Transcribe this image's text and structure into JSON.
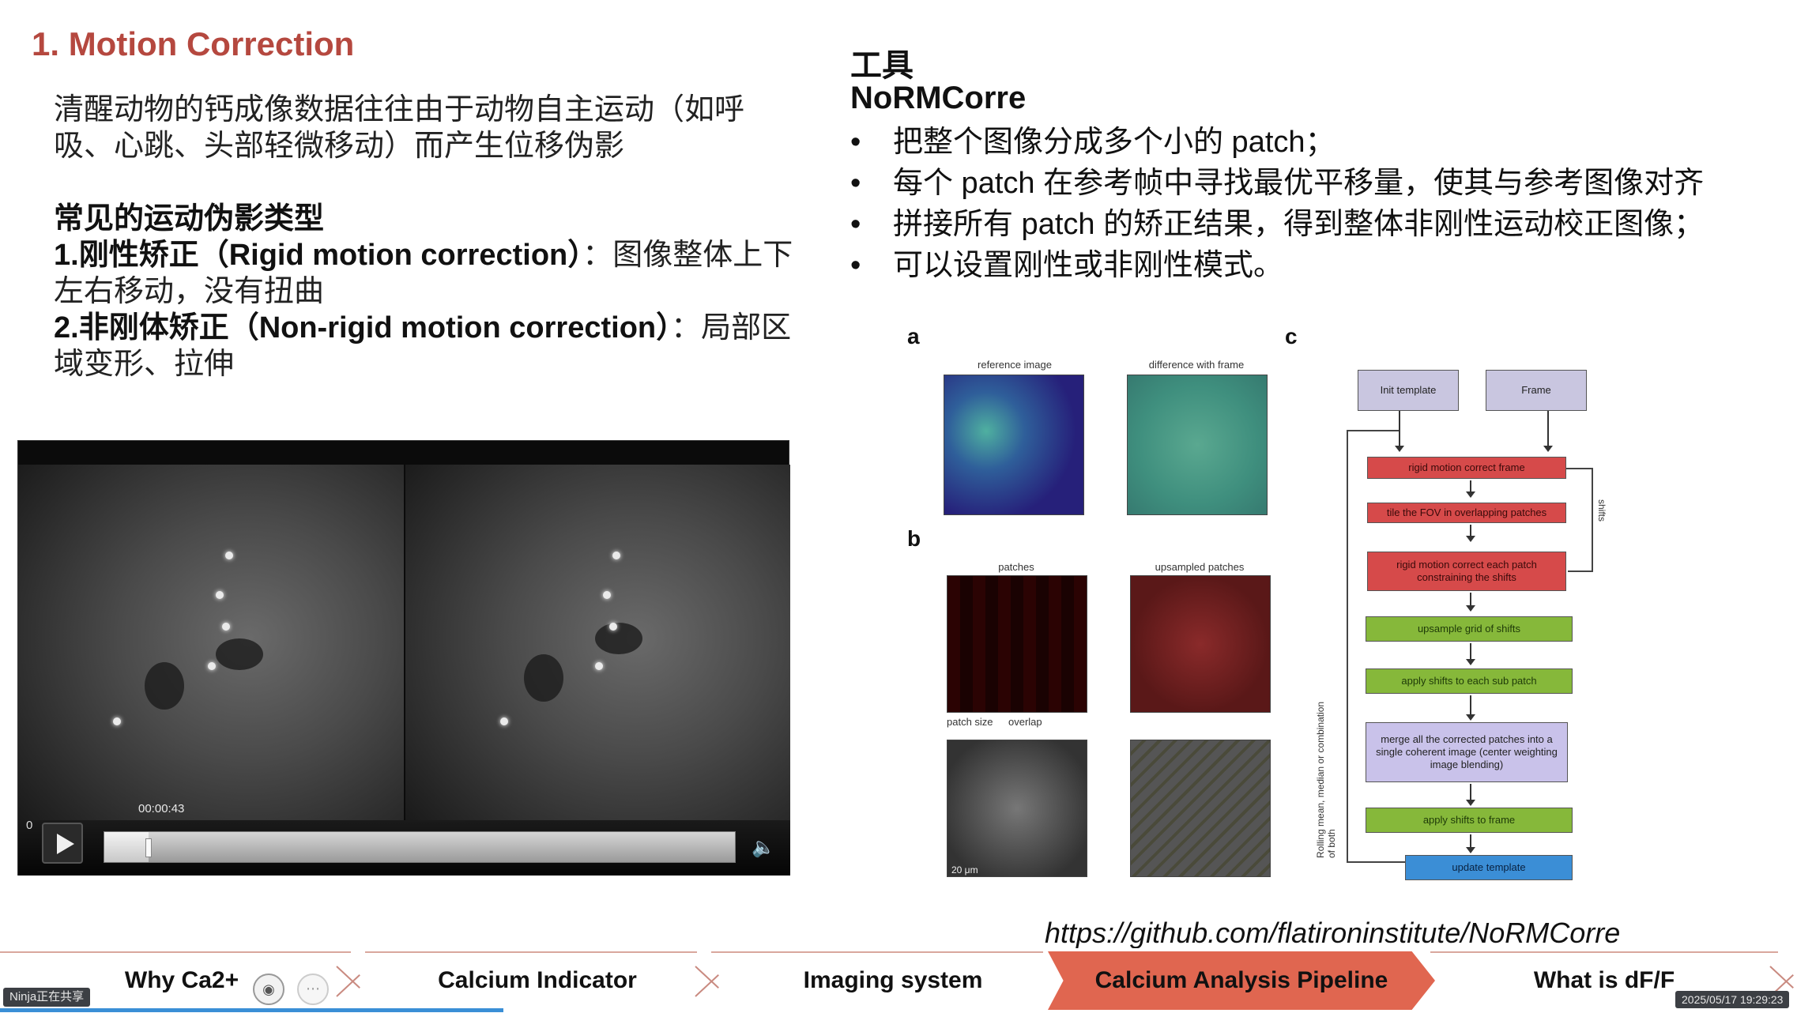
{
  "slide": {
    "title": "1. Motion Correction",
    "intro": "清醒动物的钙成像数据往往由于动物自主运动（如呼吸、心跳、头部轻微移动）而产生位移伪影",
    "types_heading": "常见的运动伪影类型",
    "type1_bold": "1.刚性矫正（Rigid motion correction）",
    "type1_text": "：图像整体上下左右移动，没有扭曲",
    "type2_bold": "2.非刚体矫正（Non-rigid motion correction）",
    "type2_text": "：局部区域变形、拉伸"
  },
  "video": {
    "timestamp": "00:00:43",
    "zero": "0",
    "progress": 0.07,
    "play_icon": "play-icon",
    "volume_icon": "speaker-icon"
  },
  "tools": {
    "heading": "工具",
    "name": "NoRMCorre",
    "bullets": [
      "把整个图像分成多个小的 patch；",
      "每个 patch 在参考帧中寻找最优平移量，使其与参考图像对齐",
      "拼接所有 patch 的矫正结果，得到整体非刚性运动校正图像；",
      "可以设置刚性或非刚性模式。"
    ]
  },
  "figure": {
    "label_a": "a",
    "label_b": "b",
    "label_c": "c",
    "cap_reference": "reference image",
    "cap_difference": "difference with frame",
    "cap_patches": "patches",
    "cap_upsampled": "upsampled patches",
    "lab_patch_size": "patch size",
    "lab_overlap": "overlap",
    "scale_bar": "20 μm",
    "box_init": "Init template",
    "box_frame": "Frame",
    "box_rigid": "rigid motion correct frame",
    "box_tile": "tile the FOV in overlapping patches",
    "box_rigid_each": "rigid motion correct each patch constraining the shifts",
    "box_upsample": "upsample grid of shifts",
    "box_apply_sub": "apply shifts to each sub patch",
    "box_merge": "merge all the corrected patches into a single coherent image (center weighting image blending)",
    "box_apply_frame": "apply shifts to frame",
    "box_update": "update template",
    "side_shifts": "shifts",
    "side_rolling": "Rolling mean, median or combination of both"
  },
  "url": "https://github.com/flatironinstitute/NoRMCorre",
  "nav": {
    "items": [
      "Why Ca2+",
      "Calcium Indicator",
      "Imaging system",
      "Calcium Analysis Pipeline",
      "What is dF/F"
    ],
    "active_index": 3,
    "progress": 0.28
  },
  "overlay": {
    "share_text": "Ninja正在共享",
    "date_text": "2025/05/17 19:29:23"
  },
  "colors": {
    "title": "#b5483f",
    "nav_active": "#e06650",
    "progress": "#3a8fd6"
  }
}
